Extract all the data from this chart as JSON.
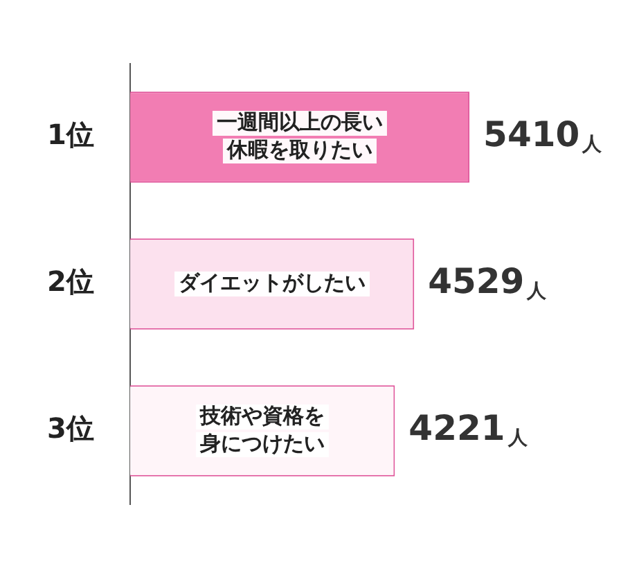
{
  "chart_data": {
    "type": "bar",
    "orientation": "horizontal",
    "categories": [
      "1位",
      "2位",
      "3位"
    ],
    "values": [
      5410,
      4529,
      4221
    ],
    "colors": [
      "#f27db3",
      "#fce1ee",
      "#fff5f9"
    ],
    "value_labels": [
      "5410人",
      "4529人",
      "4221人"
    ],
    "annotations": [
      "一週間以上の長い休暇を取りたい",
      "ダイエットがしたい",
      "技術や資格を身につけたい"
    ],
    "grid": false,
    "legend": false
  }
}
